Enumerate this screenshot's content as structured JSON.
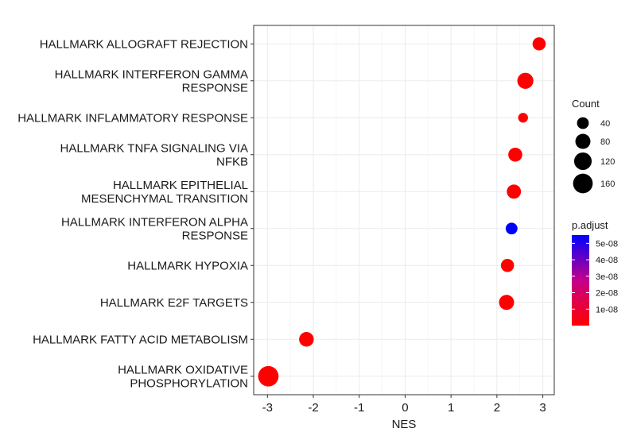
{
  "chart_data": {
    "type": "scatter",
    "xlabel": "NES",
    "ylabel": "",
    "xlim": [
      -3.3,
      3.25
    ],
    "x_ticks": [
      -3,
      -2,
      -1,
      0,
      1,
      2,
      3
    ],
    "x_tick_labels": [
      "-3",
      "-2",
      "-1",
      "0",
      "1",
      "2",
      "3"
    ],
    "grid": true,
    "legend_position": "right",
    "points": [
      {
        "label": [
          "HALLMARK ALLOGRAFT REJECTION"
        ],
        "x": 2.92,
        "count": 55,
        "p_adjust": 1e-10
      },
      {
        "label": [
          "HALLMARK INTERFERON GAMMA",
          "RESPONSE"
        ],
        "x": 2.62,
        "count": 95,
        "p_adjust": 1e-10
      },
      {
        "label": [
          "HALLMARK INFLAMMATORY RESPONSE"
        ],
        "x": 2.57,
        "count": 22,
        "p_adjust": 1e-10
      },
      {
        "label": [
          "HALLMARK TNFA SIGNALING VIA",
          "NFKB"
        ],
        "x": 2.4,
        "count": 65,
        "p_adjust": 1e-10
      },
      {
        "label": [
          "HALLMARK EPITHELIAL",
          "MESENCHYMAL TRANSITION"
        ],
        "x": 2.37,
        "count": 68,
        "p_adjust": 1e-10
      },
      {
        "label": [
          "HALLMARK INTERFERON ALPHA",
          "RESPONSE"
        ],
        "x": 2.32,
        "count": 40,
        "p_adjust": 5.5e-08
      },
      {
        "label": [
          "HALLMARK HYPOXIA"
        ],
        "x": 2.23,
        "count": 55,
        "p_adjust": 1e-10
      },
      {
        "label": [
          "HALLMARK E2F TARGETS"
        ],
        "x": 2.21,
        "count": 80,
        "p_adjust": 1e-10
      },
      {
        "label": [
          "HALLMARK FATTY ACID METABOLISM"
        ],
        "x": -2.15,
        "count": 75,
        "p_adjust": 1e-10
      },
      {
        "label": [
          "HALLMARK OXIDATIVE",
          "PHOSPHORYLATION"
        ],
        "x": -2.98,
        "count": 175,
        "p_adjust": 1e-10
      }
    ],
    "size_legend": {
      "title": "Count",
      "values": [
        40,
        80,
        120,
        160
      ],
      "labels": [
        "40",
        "80",
        "120",
        "160"
      ]
    },
    "color_legend": {
      "title": "p.adjust",
      "min": 0,
      "max": 5.5e-08,
      "low_color": "#ff0000",
      "high_color": "#0000ff",
      "ticks": [
        1e-08,
        2e-08,
        3e-08,
        4e-08,
        5e-08
      ],
      "tick_labels": [
        "1e-08",
        "2e-08",
        "3e-08",
        "4e-08",
        "5e-08"
      ]
    },
    "colors": {
      "low": "#ff0000",
      "high": "#0000ff"
    }
  }
}
